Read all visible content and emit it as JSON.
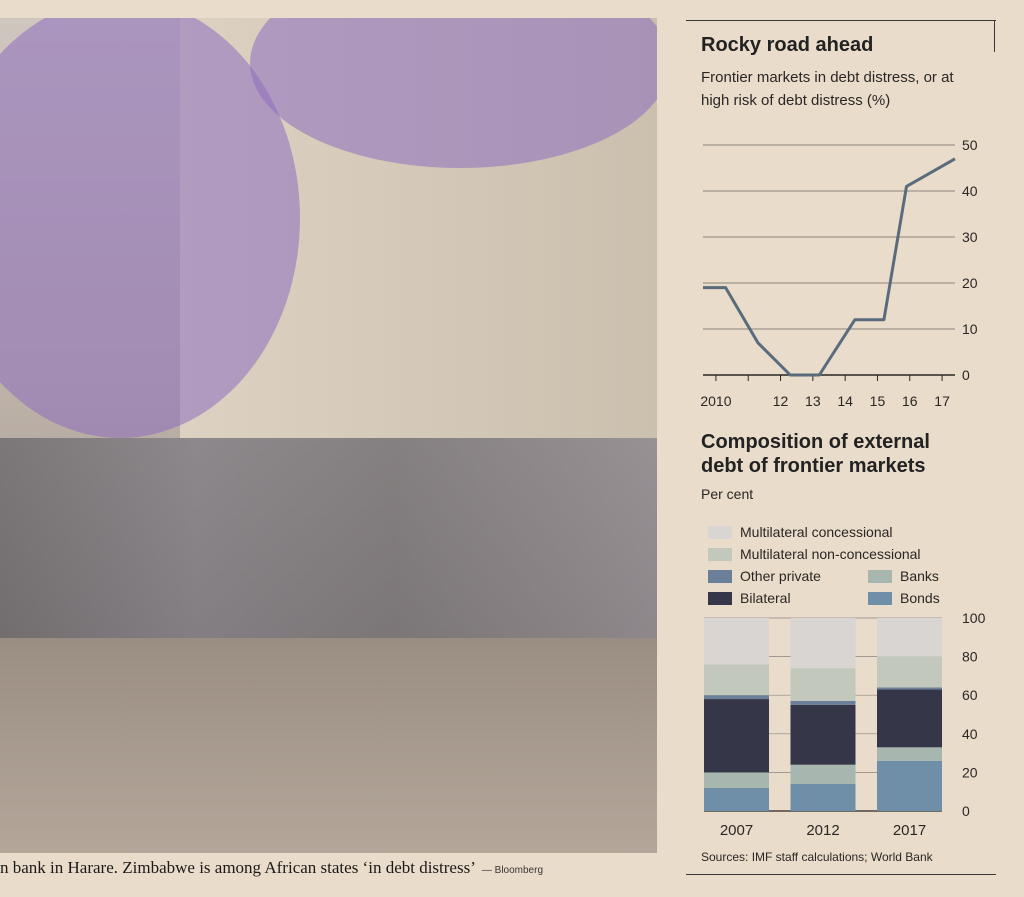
{
  "caption": {
    "text": "n bank in Harare. Zimbabwe is among African states ‘in debt distress’",
    "credit": "— Bloomberg"
  },
  "chart_data": [
    {
      "type": "line",
      "title": "Rocky road ahead",
      "subtitle": "Frontier markets in debt distress, or at high risk of debt distress (%)",
      "x": [
        2009.6,
        2010.3,
        2011.3,
        2012.3,
        2013.2,
        2014.3,
        2015.2,
        2015.9,
        2017.4
      ],
      "y": [
        19,
        19,
        7,
        0,
        0,
        12,
        12,
        41,
        47
      ],
      "xticks": [
        2010,
        2011,
        2012,
        2013,
        2014,
        2015,
        2016,
        2017
      ],
      "xtick_labels": [
        "2010",
        "",
        "12",
        "13",
        "14",
        "15",
        "16",
        "17"
      ],
      "yticks": [
        0,
        10,
        20,
        30,
        40,
        50
      ],
      "ylim": [
        0,
        50
      ],
      "grid": true,
      "line_color": "#5a6c7c"
    },
    {
      "type": "bar",
      "stacked": true,
      "title": "Composition of external debt of frontier markets",
      "ylabel": "Per cent",
      "categories": [
        "2007",
        "2012",
        "2017"
      ],
      "yticks": [
        0,
        20,
        40,
        60,
        80,
        100
      ],
      "ylim": [
        0,
        100
      ],
      "series": [
        {
          "name": "Bonds",
          "color": "#6f8ea7",
          "values": [
            12,
            14,
            26
          ]
        },
        {
          "name": "Banks",
          "color": "#a7b6ae",
          "values": [
            8,
            10,
            7
          ]
        },
        {
          "name": "Bilateral",
          "color": "#363649",
          "values": [
            38,
            31,
            30
          ]
        },
        {
          "name": "Other private",
          "color": "#6a7f98",
          "values": [
            2,
            2,
            1
          ]
        },
        {
          "name": "Multilateral non-concessional",
          "color": "#c3c8bd",
          "values": [
            16,
            17,
            16
          ]
        },
        {
          "name": "Multilateral concessional",
          "color": "#d8d5d2",
          "values": [
            24,
            26,
            20
          ]
        }
      ],
      "legend_layout": [
        [
          "Multilateral concessional"
        ],
        [
          "Multilateral non-concessional"
        ],
        [
          "Other private",
          "Banks"
        ],
        [
          "Bilateral",
          "Bonds"
        ]
      ],
      "source": "Sources: IMF staff calculations; World Bank"
    }
  ]
}
